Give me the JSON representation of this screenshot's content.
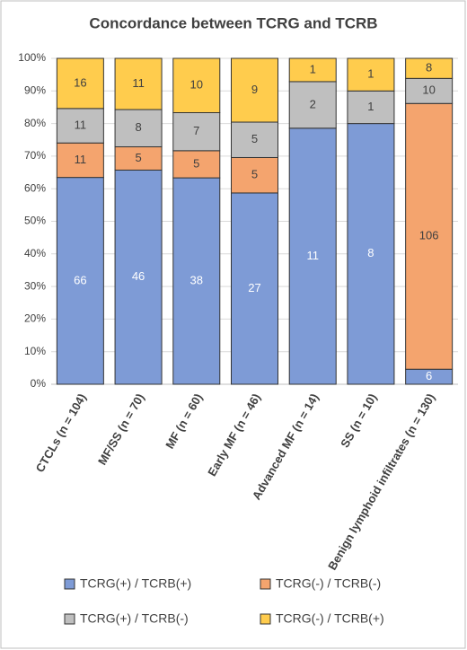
{
  "chart_data": {
    "type": "bar",
    "stacking": "percent",
    "title": "Concordance between TCRG and TCRB",
    "categories": [
      "CTCLs (n = 104)",
      "MF/SS (n = 70)",
      "MF (n = 60)",
      "Early MF (n = 46)",
      "Advanced MF (n = 14)",
      "SS (n = 10)",
      "Benign lymphoid infiltrates (n = 130)"
    ],
    "series": [
      {
        "name": "TCRG(+) / TCRB(+)",
        "color": "#7e9bd6",
        "values": [
          66,
          46,
          38,
          27,
          11,
          8,
          6
        ]
      },
      {
        "name": "TCRG(-) / TCRB(-)",
        "color": "#f4a46e",
        "values": [
          11,
          5,
          5,
          5,
          null,
          null,
          106
        ]
      },
      {
        "name": "TCRG(+) / TCRB(-)",
        "color": "#bfbfbf",
        "values": [
          11,
          8,
          7,
          5,
          2,
          1,
          10
        ]
      },
      {
        "name": "TCRG(-) / TCRB(+)",
        "color": "#ffcc4d",
        "values": [
          16,
          11,
          10,
          9,
          1,
          1,
          8
        ]
      }
    ],
    "ylim": [
      0,
      100
    ],
    "yticks": [
      {
        "value": 0,
        "label": "0%"
      },
      {
        "value": 10,
        "label": "10%"
      },
      {
        "value": 20,
        "label": "20%"
      },
      {
        "value": 30,
        "label": "30%"
      },
      {
        "value": 40,
        "label": "40%"
      },
      {
        "value": 50,
        "label": "50%"
      },
      {
        "value": 60,
        "label": "60%"
      },
      {
        "value": 70,
        "label": "70%"
      },
      {
        "value": 80,
        "label": "80%"
      },
      {
        "value": 90,
        "label": "90%"
      },
      {
        "value": 100,
        "label": "100%"
      }
    ],
    "grid": true
  }
}
